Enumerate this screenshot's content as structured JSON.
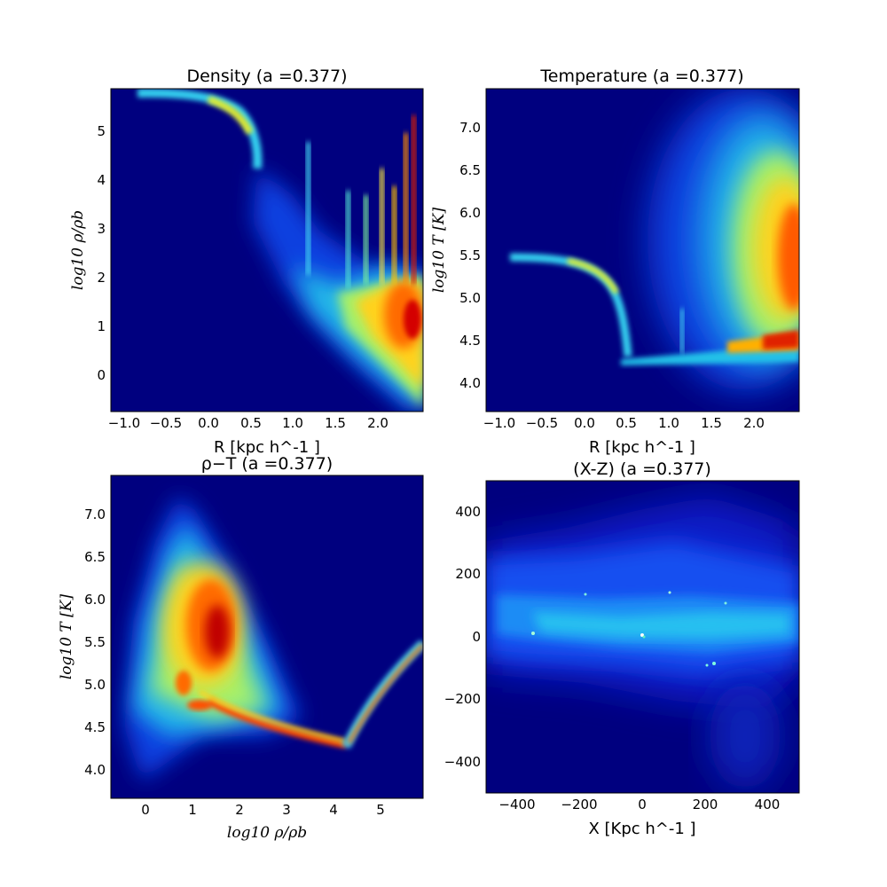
{
  "colors": {
    "background": "#00007f",
    "colormap": "jet"
  },
  "chart_data": [
    {
      "type": "heatmap",
      "title": "Density (a =0.377)",
      "xlabel": "R [kpc h^-1 ]",
      "ylabel": "log10 ρ/ρb",
      "xlim": [
        -1.2,
        2.5
      ],
      "ylim": [
        -0.7,
        5.9
      ],
      "xticks": [
        "−1.0",
        "−0.5",
        "0.0",
        "0.5",
        "1.0",
        "1.5",
        "2.0"
      ],
      "xtick_values": [
        -1.0,
        -0.5,
        0.0,
        0.5,
        1.0,
        1.5,
        2.0
      ],
      "yticks": [
        "0",
        "1",
        "2",
        "3",
        "4",
        "5"
      ],
      "ytick_values": [
        0,
        1,
        2,
        3,
        4,
        5
      ]
    },
    {
      "type": "heatmap",
      "title": "Temperature (a =0.377)",
      "xlabel": "R [kpc h^-1 ]",
      "ylabel": "log10 T [K]",
      "xlim": [
        -1.2,
        2.5
      ],
      "ylim": [
        3.7,
        7.45
      ],
      "xticks": [
        "−1.0",
        "−0.5",
        "0.0",
        "0.5",
        "1.0",
        "1.5",
        "2.0"
      ],
      "xtick_values": [
        -1.0,
        -0.5,
        0.0,
        0.5,
        1.0,
        1.5,
        2.0
      ],
      "yticks": [
        "4.0",
        "4.5",
        "5.0",
        "5.5",
        "6.0",
        "6.5",
        "7.0"
      ],
      "ytick_values": [
        4.0,
        4.5,
        5.0,
        5.5,
        6.0,
        6.5,
        7.0
      ]
    },
    {
      "type": "heatmap",
      "title": "ρ−T (a =0.377)",
      "xlabel": "log10 ρ/ρb",
      "ylabel": "log10 T [K]",
      "xlim": [
        -0.75,
        5.9
      ],
      "ylim": [
        3.7,
        7.45
      ],
      "xticks": [
        "0",
        "1",
        "2",
        "3",
        "4",
        "5"
      ],
      "xtick_values": [
        0,
        1,
        2,
        3,
        4,
        5
      ],
      "yticks": [
        "4.0",
        "4.5",
        "5.0",
        "5.5",
        "6.0",
        "6.5",
        "7.0"
      ],
      "ytick_values": [
        4.0,
        4.5,
        5.0,
        5.5,
        6.0,
        6.5,
        7.0
      ]
    },
    {
      "type": "heatmap",
      "title": "(X-Z) (a =0.377)",
      "xlabel": "X [Kpc h^-1 ]",
      "ylabel": "",
      "xlim": [
        -500,
        500
      ],
      "ylim": [
        -500,
        500
      ],
      "xticks": [
        "−400",
        "−200",
        "0",
        "200",
        "400"
      ],
      "xtick_values": [
        -400,
        -200,
        0,
        200,
        400
      ],
      "yticks": [
        "−400",
        "−200",
        "0",
        "200",
        "400"
      ],
      "ytick_values": [
        -400,
        -200,
        0,
        200,
        400
      ]
    }
  ]
}
